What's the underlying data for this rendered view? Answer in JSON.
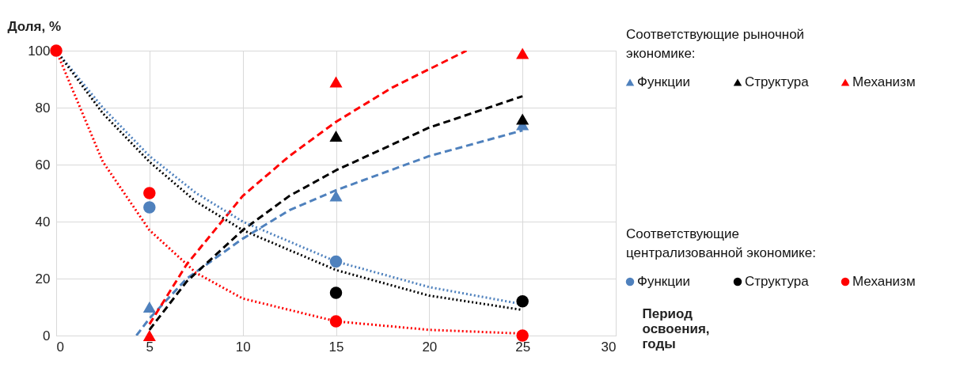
{
  "chart_data": {
    "type": "scatter",
    "xlabel": "Период освоения, годы",
    "ylabel": "Доля, %",
    "xlim": [
      0,
      30
    ],
    "xticks": [
      0,
      5,
      10,
      15,
      20,
      25,
      30
    ],
    "ylim": [
      0,
      100
    ],
    "yticks": [
      0,
      20,
      40,
      60,
      80,
      100
    ],
    "grid": true,
    "legend": "right",
    "annotations": [
      "Соответствующие рыночной экономике:",
      "Соответствующие централизованной экономике:"
    ],
    "series": [
      {
        "type": "line",
        "line_style": "dashed",
        "color": "#4f81bd",
        "x": [
          4.3,
          5,
          7,
          10,
          12.5,
          15,
          20,
          25
        ],
        "values": [
          0,
          6,
          20,
          34,
          44,
          51,
          63,
          72
        ]
      },
      {
        "type": "line",
        "line_style": "dashed",
        "color": "#000000",
        "x": [
          5,
          7,
          10,
          12.5,
          15,
          20,
          25
        ],
        "values": [
          2,
          19,
          37,
          49,
          58,
          73,
          84
        ]
      },
      {
        "type": "line",
        "line_style": "dashed",
        "color": "#ff0000",
        "x": [
          5,
          7,
          10,
          12.5,
          15,
          18,
          22
        ],
        "values": [
          4,
          25,
          49,
          63,
          75,
          87,
          100
        ]
      },
      {
        "type": "line",
        "line_style": "dotted",
        "color": "#4f81bd",
        "x": [
          0,
          2.5,
          5,
          7.5,
          10,
          15,
          20,
          25
        ],
        "values": [
          100,
          80,
          63,
          50,
          40,
          26,
          17,
          11
        ]
      },
      {
        "type": "line",
        "line_style": "dotted",
        "color": "#000000",
        "x": [
          0,
          2.5,
          5,
          7.5,
          10,
          15,
          20,
          25
        ],
        "values": [
          100,
          78,
          61,
          47,
          37,
          23,
          14,
          9
        ]
      },
      {
        "type": "line",
        "line_style": "dotted",
        "color": "#ff0000",
        "x": [
          0,
          2.5,
          5,
          7.5,
          10,
          15,
          20,
          25
        ],
        "values": [
          100,
          61,
          37,
          22,
          13,
          5,
          2,
          0.7
        ]
      },
      {
        "name": "Функции",
        "marker": "triangle",
        "color": "#4f81bd",
        "x": [
          5,
          15,
          25
        ],
        "values": [
          10,
          49,
          74
        ]
      },
      {
        "name": "Структура",
        "marker": "triangle",
        "color": "#000000",
        "x": [
          15,
          25
        ],
        "values": [
          70,
          76
        ]
      },
      {
        "name": "Механизм",
        "marker": "triangle",
        "color": "#ff0000",
        "x": [
          5,
          15,
          25
        ],
        "values": [
          0,
          89,
          99
        ]
      },
      {
        "name": "Функции",
        "marker": "circle",
        "color": "#4f81bd",
        "x": [
          5,
          15
        ],
        "values": [
          45,
          26
        ]
      },
      {
        "name": "Структура",
        "marker": "circle",
        "color": "#000000",
        "x": [
          15,
          25
        ],
        "values": [
          15,
          12
        ]
      },
      {
        "name": "Механизм",
        "marker": "circle",
        "color": "#ff0000",
        "x": [
          0,
          5,
          15,
          25
        ],
        "values": [
          100,
          50,
          5,
          0
        ]
      }
    ]
  }
}
